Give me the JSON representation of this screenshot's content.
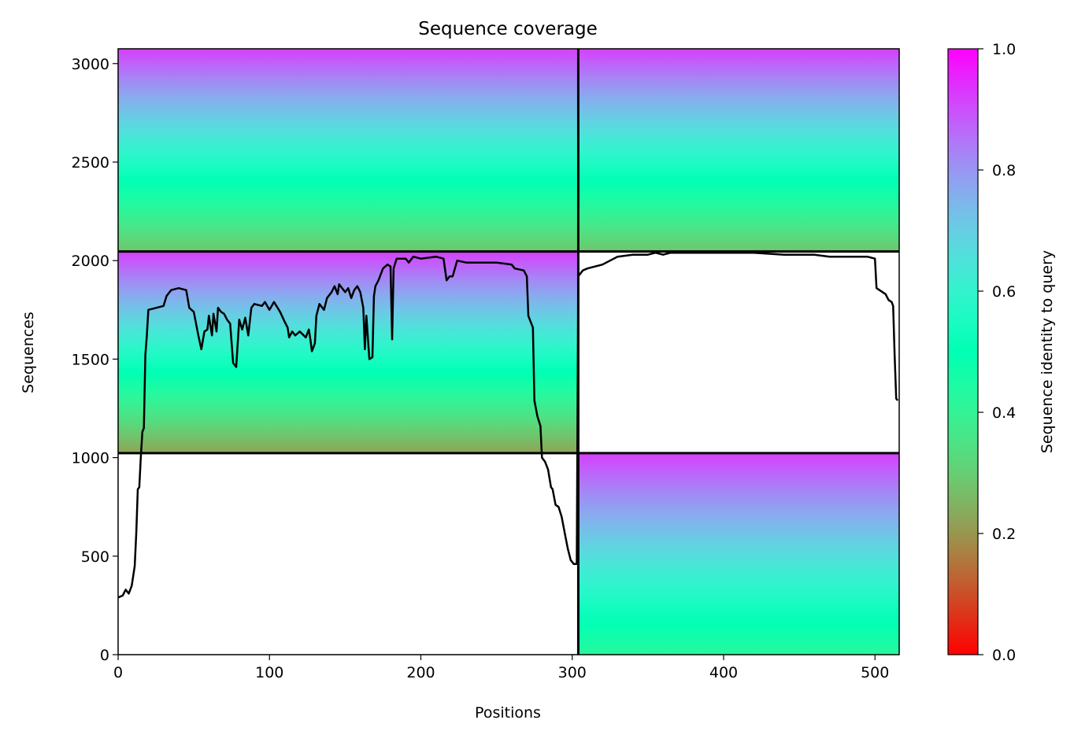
{
  "chart_data": {
    "type": "heatmap",
    "title": "Sequence coverage",
    "xlabel": "Positions",
    "ylabel": "Sequences",
    "colorbar_label": "Sequence identity to query",
    "xlim": [
      0,
      516
    ],
    "ylim": [
      0,
      3075
    ],
    "xticks": [
      0,
      100,
      200,
      300,
      400,
      500
    ],
    "yticks": [
      0,
      500,
      1000,
      1500,
      2000,
      2500,
      3000
    ],
    "colorbar_ticks": [
      "0.0",
      "0.2",
      "0.4",
      "0.6",
      "0.8",
      "1.0"
    ],
    "colorbar_range": [
      0,
      1
    ],
    "colormap": "rainbow_r",
    "grid": false,
    "chain_boundary_x": 304,
    "row_boundaries_y": [
      1023,
      2046
    ],
    "msa_blocks": [
      {
        "name": "paired",
        "x": [
          0,
          516
        ],
        "y": [
          2046,
          3075
        ],
        "identity_bottom": 0.28,
        "identity_top": 0.92
      },
      {
        "name": "chain-a-unpaired",
        "x": [
          0,
          304
        ],
        "y": [
          1023,
          2046
        ],
        "identity_bottom": 0.22,
        "identity_top": 0.92
      },
      {
        "name": "chain-b-unpaired",
        "x": [
          304,
          516
        ],
        "y": [
          0,
          1023
        ],
        "identity_bottom": 0.42,
        "identity_top": 0.92
      }
    ],
    "coverage_series": {
      "name": "coverage",
      "color": "#000000",
      "points": [
        [
          0,
          290
        ],
        [
          3,
          300
        ],
        [
          5,
          330
        ],
        [
          7,
          310
        ],
        [
          9,
          350
        ],
        [
          11,
          450
        ],
        [
          12,
          620
        ],
        [
          13,
          840
        ],
        [
          14,
          850
        ],
        [
          15,
          1000
        ],
        [
          16,
          1130
        ],
        [
          17,
          1150
        ],
        [
          18,
          1520
        ],
        [
          19,
          1620
        ],
        [
          20,
          1750
        ],
        [
          25,
          1760
        ],
        [
          30,
          1770
        ],
        [
          32,
          1820
        ],
        [
          35,
          1850
        ],
        [
          40,
          1860
        ],
        [
          45,
          1850
        ],
        [
          47,
          1760
        ],
        [
          50,
          1740
        ],
        [
          53,
          1620
        ],
        [
          55,
          1550
        ],
        [
          57,
          1640
        ],
        [
          59,
          1650
        ],
        [
          60,
          1720
        ],
        [
          62,
          1620
        ],
        [
          63,
          1730
        ],
        [
          65,
          1640
        ],
        [
          66,
          1760
        ],
        [
          68,
          1740
        ],
        [
          70,
          1730
        ],
        [
          72,
          1700
        ],
        [
          74,
          1680
        ],
        [
          76,
          1480
        ],
        [
          78,
          1460
        ],
        [
          80,
          1700
        ],
        [
          82,
          1650
        ],
        [
          84,
          1710
        ],
        [
          86,
          1620
        ],
        [
          88,
          1760
        ],
        [
          90,
          1780
        ],
        [
          95,
          1770
        ],
        [
          97,
          1790
        ],
        [
          100,
          1750
        ],
        [
          103,
          1790
        ],
        [
          107,
          1740
        ],
        [
          110,
          1690
        ],
        [
          112,
          1660
        ],
        [
          113,
          1610
        ],
        [
          115,
          1640
        ],
        [
          117,
          1620
        ],
        [
          120,
          1640
        ],
        [
          124,
          1610
        ],
        [
          126,
          1650
        ],
        [
          127,
          1600
        ],
        [
          128,
          1540
        ],
        [
          130,
          1580
        ],
        [
          131,
          1720
        ],
        [
          133,
          1780
        ],
        [
          136,
          1750
        ],
        [
          138,
          1810
        ],
        [
          141,
          1840
        ],
        [
          143,
          1870
        ],
        [
          145,
          1830
        ],
        [
          146,
          1880
        ],
        [
          148,
          1860
        ],
        [
          150,
          1840
        ],
        [
          152,
          1860
        ],
        [
          154,
          1810
        ],
        [
          156,
          1850
        ],
        [
          158,
          1870
        ],
        [
          160,
          1840
        ],
        [
          162,
          1760
        ],
        [
          163,
          1550
        ],
        [
          164,
          1720
        ],
        [
          166,
          1500
        ],
        [
          168,
          1510
        ],
        [
          169,
          1820
        ],
        [
          170,
          1870
        ],
        [
          172,
          1900
        ],
        [
          175,
          1960
        ],
        [
          178,
          1980
        ],
        [
          180,
          1970
        ],
        [
          181,
          1600
        ],
        [
          182,
          1960
        ],
        [
          184,
          2010
        ],
        [
          190,
          2010
        ],
        [
          192,
          1990
        ],
        [
          195,
          2020
        ],
        [
          200,
          2010
        ],
        [
          210,
          2020
        ],
        [
          215,
          2010
        ],
        [
          217,
          1900
        ],
        [
          219,
          1920
        ],
        [
          221,
          1920
        ],
        [
          224,
          2000
        ],
        [
          230,
          1990
        ],
        [
          240,
          1990
        ],
        [
          250,
          1990
        ],
        [
          260,
          1980
        ],
        [
          262,
          1960
        ],
        [
          268,
          1950
        ],
        [
          270,
          1920
        ],
        [
          271,
          1720
        ],
        [
          272,
          1700
        ],
        [
          274,
          1660
        ],
        [
          275,
          1290
        ],
        [
          277,
          1210
        ],
        [
          279,
          1160
        ],
        [
          280,
          1000
        ],
        [
          282,
          980
        ],
        [
          284,
          940
        ],
        [
          286,
          850
        ],
        [
          287,
          840
        ],
        [
          289,
          760
        ],
        [
          291,
          750
        ],
        [
          293,
          700
        ],
        [
          295,
          620
        ],
        [
          297,
          540
        ],
        [
          299,
          480
        ],
        [
          301,
          460
        ],
        [
          303,
          460
        ],
        [
          304,
          1920
        ],
        [
          307,
          1950
        ],
        [
          310,
          1960
        ],
        [
          315,
          1970
        ],
        [
          320,
          1980
        ],
        [
          325,
          2000
        ],
        [
          330,
          2020
        ],
        [
          340,
          2030
        ],
        [
          350,
          2030
        ],
        [
          355,
          2040
        ],
        [
          360,
          2030
        ],
        [
          365,
          2040
        ],
        [
          380,
          2040
        ],
        [
          400,
          2040
        ],
        [
          420,
          2040
        ],
        [
          440,
          2030
        ],
        [
          460,
          2030
        ],
        [
          470,
          2020
        ],
        [
          480,
          2020
        ],
        [
          490,
          2020
        ],
        [
          495,
          2020
        ],
        [
          500,
          2010
        ],
        [
          501,
          1860
        ],
        [
          503,
          1850
        ],
        [
          505,
          1840
        ],
        [
          507,
          1830
        ],
        [
          509,
          1800
        ],
        [
          511,
          1790
        ],
        [
          512,
          1770
        ],
        [
          513,
          1520
        ],
        [
          514,
          1300
        ],
        [
          515,
          1290
        ]
      ]
    }
  }
}
